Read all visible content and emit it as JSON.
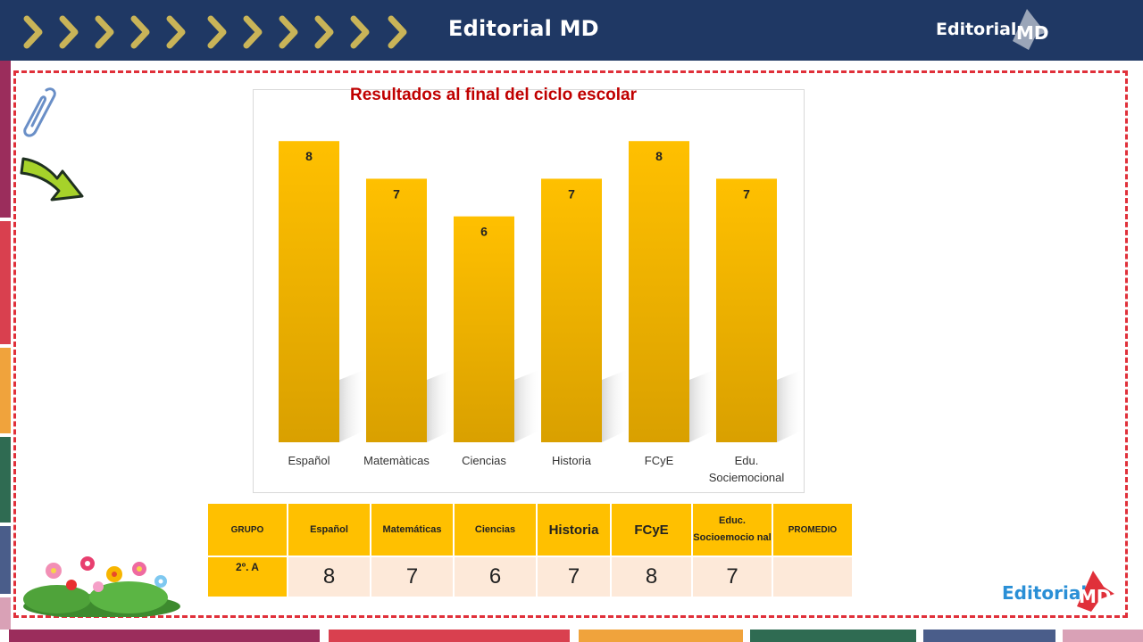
{
  "header": {
    "title": "Editorial MD",
    "brand": "Editorial"
  },
  "colors": {
    "header_bg": "#1f3864",
    "bar": "#ffc000",
    "frame": "#e0303a",
    "title_red": "#c00000",
    "table_head": "#ffc000",
    "table_row": "#fde9d9"
  },
  "chart_data": {
    "type": "bar",
    "title": "Resultados al final del ciclo escolar",
    "categories": [
      "Español",
      "Matemàticas",
      "Ciencias",
      "Historia",
      "FCyE",
      "Edu. Sociemocional"
    ],
    "values": [
      8,
      7,
      6,
      7,
      8,
      7
    ],
    "xlabel": "",
    "ylabel": "",
    "ylim": [
      0,
      9
    ],
    "grid": false,
    "legend": "none",
    "data_labels": true
  },
  "table": {
    "headers": [
      "GRUPO",
      "Español",
      "Matemáticas",
      "Ciencias",
      "Historia",
      "FCyE",
      "Educ. Socioemocio nal",
      "PROMEDIO"
    ],
    "row": {
      "group": "2º. A",
      "values": [
        "8",
        "7",
        "6",
        "7",
        "8",
        "7",
        ""
      ]
    }
  },
  "footer": {
    "brand": "Editorial"
  }
}
